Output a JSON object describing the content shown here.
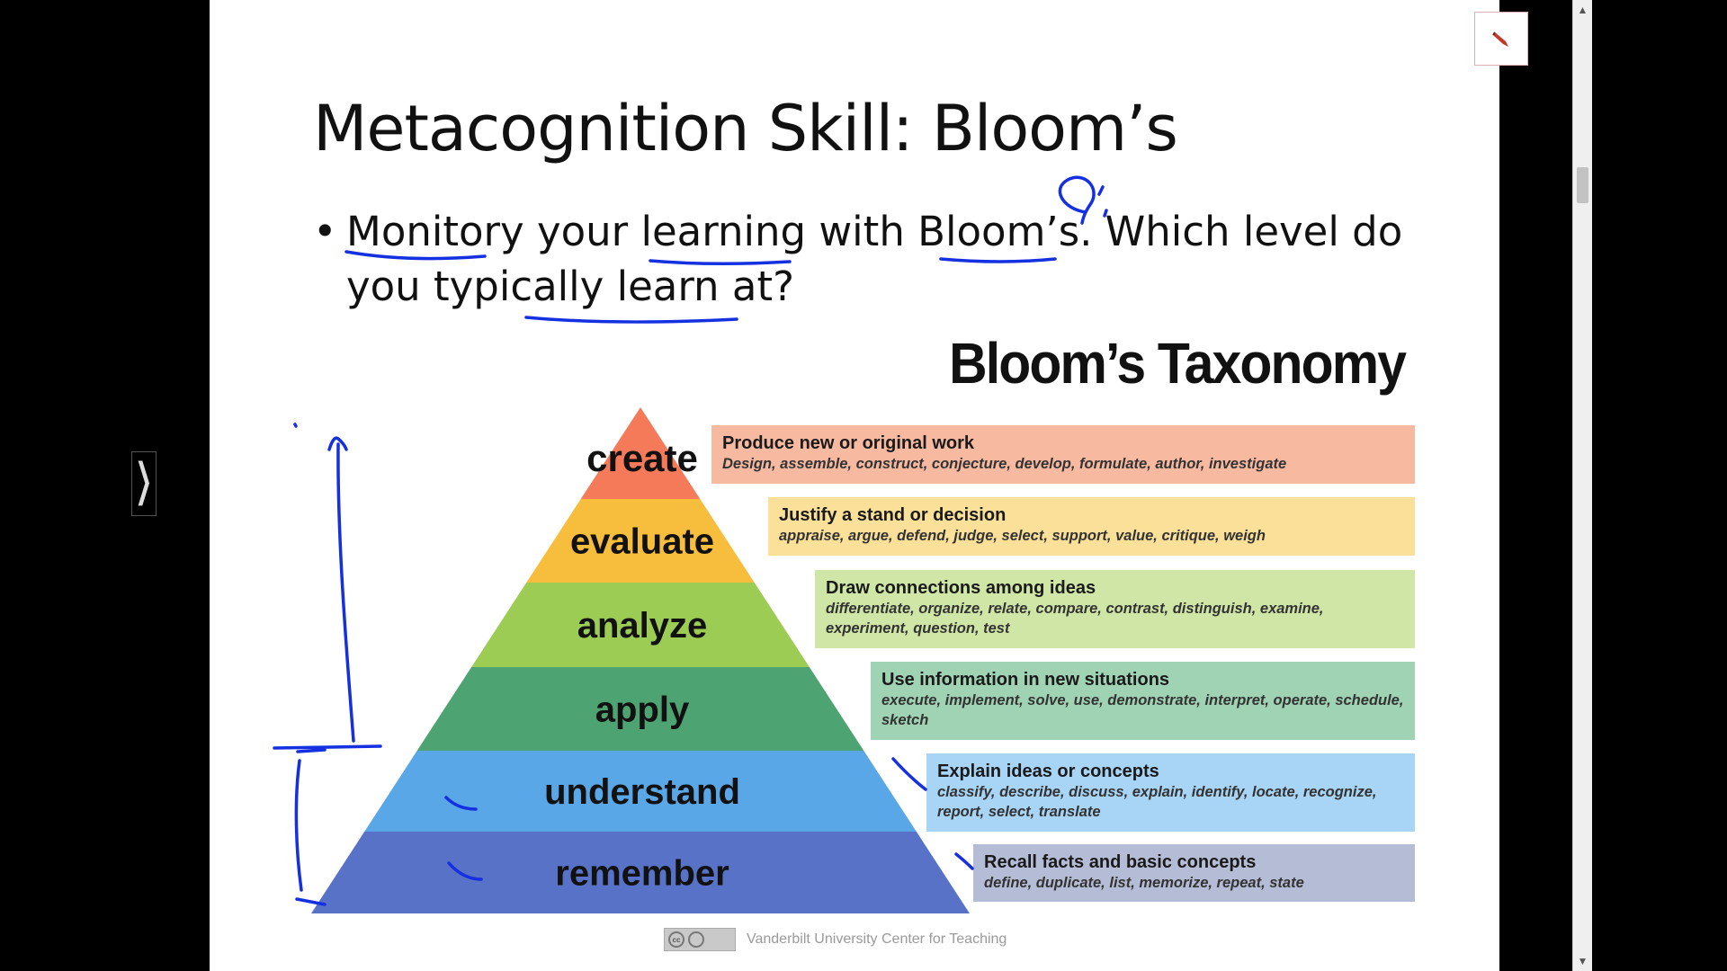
{
  "slide": {
    "title": "Metacognition Skill: Bloom’s",
    "bullet_marker": "•",
    "bullet": "Monitory your learning with Bloom’s. Which level do you typically learn at?"
  },
  "diagram": {
    "title": "Bloom’s Taxonomy",
    "levels": [
      {
        "label": "create",
        "description": "Produce new or original work",
        "verbs": "Design, assemble, construct, conjecture, develop, formulate, author, investigate",
        "color": "#f47a5a",
        "box_color": "#f8b9a1"
      },
      {
        "label": "evaluate",
        "description": "Justify a stand or decision",
        "verbs": "appraise, argue, defend, judge, select, support, value, critique, weigh",
        "color": "#f7bd3c",
        "box_color": "#fbe099"
      },
      {
        "label": "analyze",
        "description": "Draw connections among ideas",
        "verbs": "differentiate, organize, relate, compare, contrast, distinguish, examine, experiment, question, test",
        "color": "#9ccc54",
        "box_color": "#cfe6a6"
      },
      {
        "label": "apply",
        "description": "Use information in new situations",
        "verbs": "execute, implement, solve, use, demonstrate, interpret, operate, schedule, sketch",
        "color": "#4da472",
        "box_color": "#9fd3b3"
      },
      {
        "label": "understand",
        "description": "Explain ideas or concepts",
        "verbs": "classify, describe, discuss, explain, identify, locate, recognize, report, select, translate",
        "color": "#5aa7e8",
        "box_color": "#a8d4f6"
      },
      {
        "label": "remember",
        "description": "Recall facts and basic concepts",
        "verbs": "define, duplicate, list, memorize, repeat, state",
        "color": "#5872c8",
        "box_color": "#b5bcd6"
      }
    ],
    "credit": "Vanderbilt University Center for Teaching",
    "license_badge": "cc"
  },
  "viewer": {
    "toggle_glyph": "⟩",
    "pen_icon": "pen-tool-icon",
    "scroll_up_glyph": "▲",
    "scroll_down_glyph": "▼"
  },
  "annotation_color": "#1530e0"
}
